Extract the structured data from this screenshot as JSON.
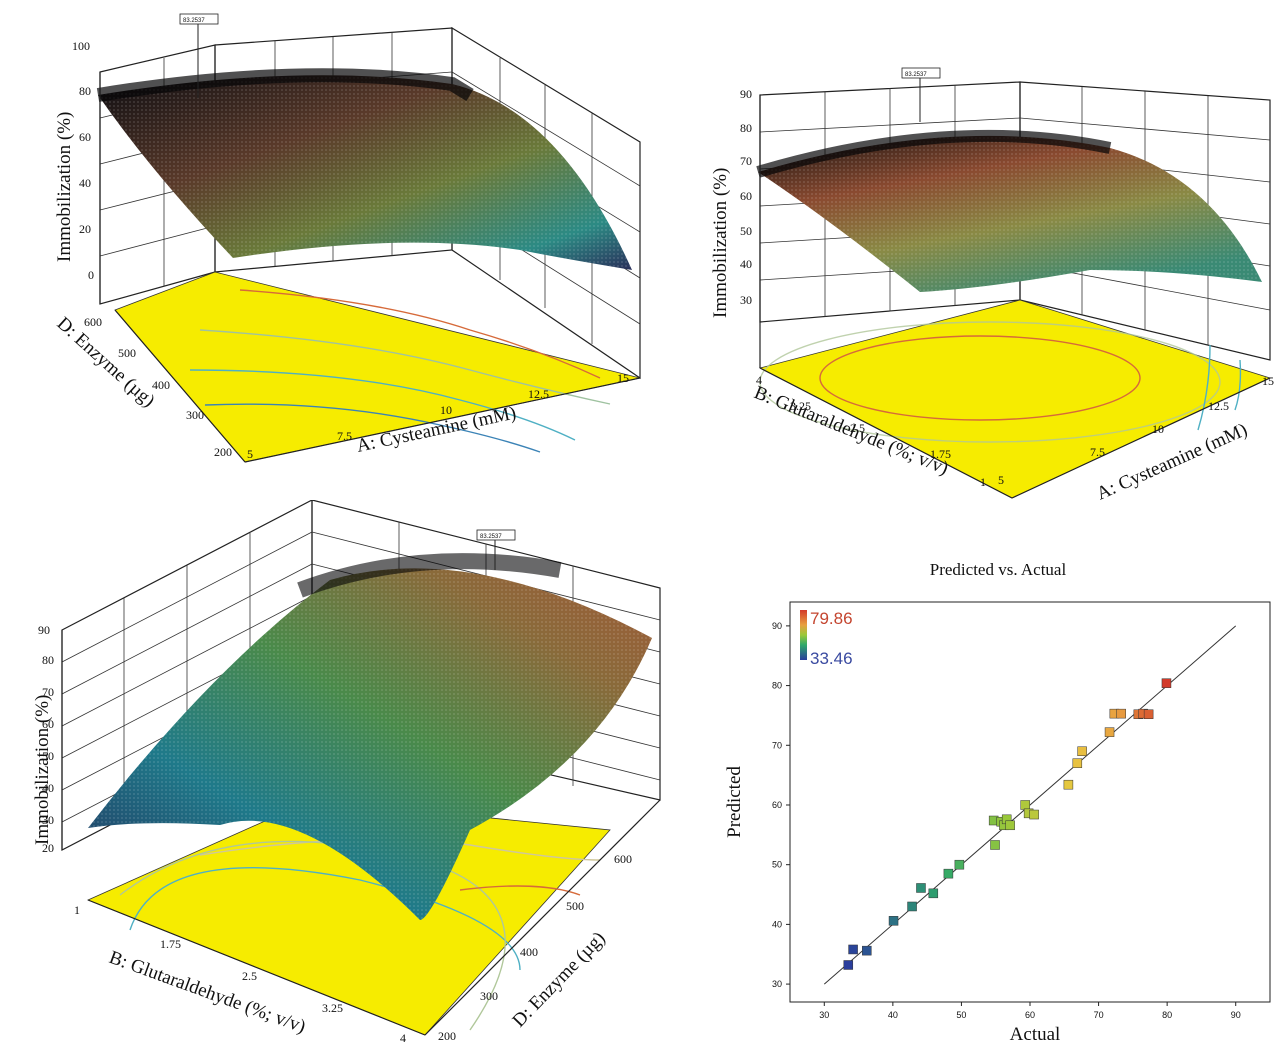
{
  "chart_data": [
    {
      "type": "surface3d",
      "z_axis_label": "Immobilization (%)",
      "x_axis_label": "A: Cysteamine (mM)",
      "y_axis_label": "D: Enzyme (µg)",
      "z_ticks": [
        "100",
        "80",
        "60",
        "40",
        "20",
        "0"
      ],
      "x_ticks": [
        "5",
        "7.5",
        "10",
        "12.5",
        "15"
      ],
      "y_ticks": [
        "600",
        "500",
        "400",
        "300",
        "200"
      ],
      "flag_label": "83.2537"
    },
    {
      "type": "surface3d",
      "z_axis_label": "Immobilization (%)",
      "x_axis_label": "A: Cysteamine (mM)",
      "y_axis_label": "B: Glutaraldehyde (%; v/v)",
      "z_ticks": [
        "90",
        "80",
        "70",
        "60",
        "50",
        "40",
        "30"
      ],
      "x_ticks": [
        "5",
        "7.5",
        "10",
        "12.5",
        "15"
      ],
      "y_ticks": [
        "4",
        "3.25",
        "2.5",
        "1.75",
        "1"
      ],
      "flag_label": "83.2537"
    },
    {
      "type": "surface3d",
      "z_axis_label": "Immobilization (%)",
      "x_axis_label": "B: Glutaraldehyde (%; v/v)",
      "y_axis_label": "D: Enzyme (µg)",
      "z_ticks": [
        "90",
        "80",
        "70",
        "60",
        "50",
        "40",
        "30",
        "20"
      ],
      "x_ticks": [
        "1",
        "1.75",
        "2.5",
        "3.25",
        "4"
      ],
      "y_ticks": [
        "600",
        "500",
        "400",
        "300",
        "200"
      ],
      "flag_label": "83.2537"
    },
    {
      "type": "scatter",
      "title": "Predicted vs. Actual",
      "xlabel": "Actual",
      "ylabel": "Predicted",
      "xlim": [
        25,
        95
      ],
      "ylim": [
        27,
        94
      ],
      "x_ticks": [
        "30",
        "40",
        "50",
        "60",
        "70",
        "80",
        "90"
      ],
      "y_ticks": [
        "30",
        "40",
        "50",
        "60",
        "70",
        "80",
        "90"
      ],
      "color_scale": {
        "max_label": "79.86",
        "min_label": "33.46",
        "max": 79.86,
        "min": 33.46
      },
      "points": [
        {
          "x": 33.5,
          "y": 33.2
        },
        {
          "x": 34.2,
          "y": 35.8
        },
        {
          "x": 36.2,
          "y": 35.6
        },
        {
          "x": 40.1,
          "y": 40.6
        },
        {
          "x": 42.8,
          "y": 43.0
        },
        {
          "x": 44.1,
          "y": 46.1
        },
        {
          "x": 45.9,
          "y": 45.2
        },
        {
          "x": 48.1,
          "y": 48.5
        },
        {
          "x": 49.7,
          "y": 50.0
        },
        {
          "x": 54.9,
          "y": 53.3
        },
        {
          "x": 54.7,
          "y": 57.4
        },
        {
          "x": 55.8,
          "y": 57.2
        },
        {
          "x": 56.2,
          "y": 56.6
        },
        {
          "x": 56.6,
          "y": 57.6
        },
        {
          "x": 57.1,
          "y": 56.6
        },
        {
          "x": 59.3,
          "y": 60.0
        },
        {
          "x": 59.8,
          "y": 58.6
        },
        {
          "x": 60.6,
          "y": 58.4
        },
        {
          "x": 65.6,
          "y": 63.4
        },
        {
          "x": 66.9,
          "y": 67.0
        },
        {
          "x": 67.6,
          "y": 69.0
        },
        {
          "x": 71.6,
          "y": 72.2
        },
        {
          "x": 72.3,
          "y": 75.3
        },
        {
          "x": 73.3,
          "y": 75.3
        },
        {
          "x": 75.8,
          "y": 75.2
        },
        {
          "x": 76.5,
          "y": 75.3
        },
        {
          "x": 77.3,
          "y": 75.2
        },
        {
          "x": 79.9,
          "y": 80.4
        }
      ]
    }
  ]
}
